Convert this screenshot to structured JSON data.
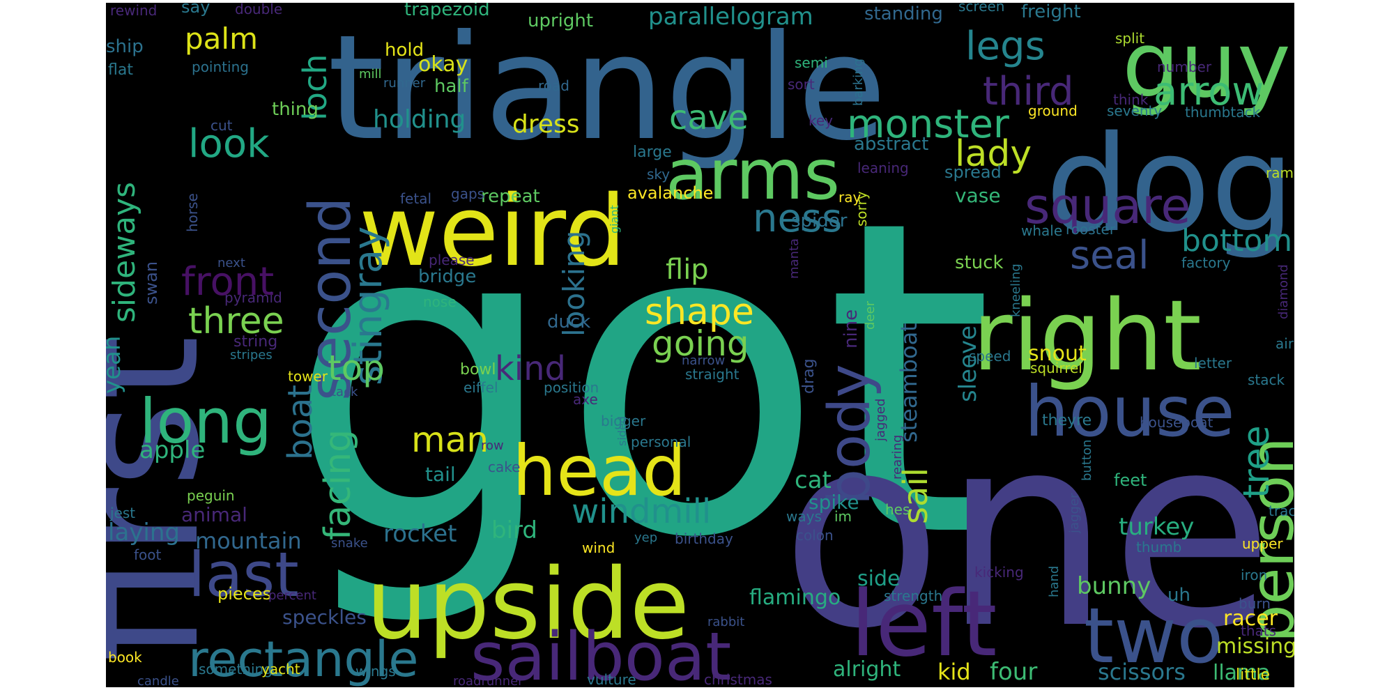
{
  "cloud": {
    "background": "#000000",
    "palette": "viridis",
    "words": [
      {
        "text": "got",
        "color": "#21a585",
        "weight": 1.0
      },
      {
        "text": "one",
        "color": "#433e85",
        "weight": 0.85
      },
      {
        "text": "first",
        "color": "#3e4989",
        "weight": 0.7
      },
      {
        "text": "triangle",
        "color": "#33638d",
        "weight": 0.65
      },
      {
        "text": "dog",
        "color": "#33638d",
        "weight": 0.55
      },
      {
        "text": "weird",
        "color": "#e2e418",
        "weight": 0.45
      },
      {
        "text": "guy",
        "color": "#5ec962",
        "weight": 0.45
      },
      {
        "text": "right",
        "color": "#7ad151",
        "weight": 0.45
      },
      {
        "text": "upside",
        "color": "#bddf26",
        "weight": 0.5
      },
      {
        "text": "left",
        "color": "#482878",
        "weight": 0.5
      },
      {
        "text": "sailboat",
        "color": "#482878",
        "weight": 0.4
      },
      {
        "text": "two",
        "color": "#3b528b",
        "weight": 0.4
      },
      {
        "text": "person",
        "color": "#6ece58",
        "weight": 0.35
      },
      {
        "text": "head",
        "color": "#e5e419",
        "weight": 0.35
      },
      {
        "text": "house",
        "color": "#3b528b",
        "weight": 0.3
      },
      {
        "text": "arms",
        "color": "#5ec962",
        "weight": 0.3
      },
      {
        "text": "body",
        "color": "#3e4989",
        "weight": 0.3
      },
      {
        "text": "second",
        "color": "#3b528b",
        "weight": 0.3
      },
      {
        "text": "long",
        "color": "#2fb47c",
        "weight": 0.3
      },
      {
        "text": "last",
        "color": "#3e4989",
        "weight": 0.3
      },
      {
        "text": "rectangle",
        "color": "#2a788e",
        "weight": 0.25
      },
      {
        "text": "monster",
        "color": "#2fb47c",
        "weight": 0.22
      },
      {
        "text": "square",
        "color": "#482878",
        "weight": 0.22
      },
      {
        "text": "legs",
        "color": "#25858e",
        "weight": 0.2
      },
      {
        "text": "arrow",
        "color": "#3dbc74",
        "weight": 0.2
      },
      {
        "text": "third",
        "color": "#482878",
        "weight": 0.18
      },
      {
        "text": "seal",
        "color": "#3b528b",
        "weight": 0.18
      },
      {
        "text": "bottom",
        "color": "#21918c",
        "weight": 0.18
      },
      {
        "text": "tree",
        "color": "#1fa088",
        "weight": 0.18
      },
      {
        "text": "lady",
        "color": "#bddf26",
        "weight": 0.18
      },
      {
        "text": "ness",
        "color": "#2a788e",
        "weight": 0.18
      },
      {
        "text": "cave",
        "color": "#3dbc74",
        "weight": 0.17
      },
      {
        "text": "look",
        "color": "#22a884",
        "weight": 0.18
      },
      {
        "text": "loch",
        "color": "#22a884",
        "weight": 0.16
      },
      {
        "text": "palm",
        "color": "#dde318",
        "weight": 0.16
      },
      {
        "text": "sideways",
        "color": "#2fb47c",
        "weight": 0.17
      },
      {
        "text": "front",
        "color": "#471164",
        "weight": 0.18
      },
      {
        "text": "three",
        "color": "#7ad151",
        "weight": 0.18
      },
      {
        "text": "stingray",
        "color": "#2a788e",
        "weight": 0.18
      },
      {
        "text": "top",
        "color": "#5ec962",
        "weight": 0.17
      },
      {
        "text": "facing",
        "color": "#35b779",
        "weight": 0.17
      },
      {
        "text": "boat",
        "color": "#2c728e",
        "weight": 0.16
      },
      {
        "text": "shape",
        "color": "#fde725",
        "weight": 0.17
      },
      {
        "text": "going",
        "color": "#7ad151",
        "weight": 0.17
      },
      {
        "text": "kind",
        "color": "#482878",
        "weight": 0.16
      },
      {
        "text": "man",
        "color": "#d8e219",
        "weight": 0.16
      },
      {
        "text": "windmill",
        "color": "#21918c",
        "weight": 0.17
      },
      {
        "text": "looking",
        "color": "#2c728e",
        "weight": 0.16
      },
      {
        "text": "flip",
        "color": "#7ad151",
        "weight": 0.14
      },
      {
        "text": "dress",
        "color": "#d8e219",
        "weight": 0.13
      },
      {
        "text": "holding",
        "color": "#21918c",
        "weight": 0.13
      },
      {
        "text": "okay",
        "color": "#d8e219",
        "weight": 0.12
      },
      {
        "text": "parallelogram",
        "color": "#21918c",
        "weight": 0.12
      },
      {
        "text": "nine",
        "color": "#482878",
        "weight": 0.11
      },
      {
        "text": "sail",
        "color": "#addc30",
        "weight": 0.14
      },
      {
        "text": "steamboat",
        "color": "#31688e",
        "weight": 0.11
      },
      {
        "text": "sleeve",
        "color": "#25858e",
        "weight": 0.12
      },
      {
        "text": "snout",
        "color": "#e5e419",
        "weight": 0.1
      },
      {
        "text": "bunny",
        "color": "#5ec962",
        "weight": 0.11
      },
      {
        "text": "turkey",
        "color": "#28ae80",
        "weight": 0.11
      },
      {
        "text": "racer",
        "color": "#fde725",
        "weight": 0.1
      },
      {
        "text": "missing",
        "color": "#bddf26",
        "weight": 0.1
      },
      {
        "text": "scissors",
        "color": "#2a788e",
        "weight": 0.11
      },
      {
        "text": "llama",
        "color": "#3dbc74",
        "weight": 0.11
      },
      {
        "text": "four",
        "color": "#3dbc74",
        "weight": 0.11
      },
      {
        "text": "kid",
        "color": "#e5e419",
        "weight": 0.1
      },
      {
        "text": "alright",
        "color": "#2fb47c",
        "weight": 0.1
      },
      {
        "text": "flamingo",
        "color": "#27ad81",
        "weight": 0.1
      },
      {
        "text": "side",
        "color": "#1fa088",
        "weight": 0.1
      },
      {
        "text": "apple",
        "color": "#2fb47c",
        "weight": 0.1
      },
      {
        "text": "yeah",
        "color": "#21918c",
        "weight": 0.1
      },
      {
        "text": "laying",
        "color": "#2c728e",
        "weight": 0.1
      },
      {
        "text": "mountain",
        "color": "#31688e",
        "weight": 0.1
      },
      {
        "text": "rocket",
        "color": "#2c728e",
        "weight": 0.1
      },
      {
        "text": "bird",
        "color": "#2fb47c",
        "weight": 0.1
      },
      {
        "text": "cat",
        "color": "#2fb47c",
        "weight": 0.1
      },
      {
        "text": "spike",
        "color": "#21918c",
        "weight": 0.09
      },
      {
        "text": "animal",
        "color": "#482878",
        "weight": 0.09
      },
      {
        "text": "speckles",
        "color": "#3b528b",
        "weight": 0.09
      },
      {
        "text": "pieces",
        "color": "#e5e419",
        "weight": 0.08
      },
      {
        "text": "tail",
        "color": "#21918c",
        "weight": 0.09
      },
      {
        "text": "avalanche",
        "color": "#fde725",
        "weight": 0.08
      },
      {
        "text": "repeat",
        "color": "#5ec962",
        "weight": 0.08
      },
      {
        "text": "vase",
        "color": "#35b779",
        "weight": 0.09
      },
      {
        "text": "spread",
        "color": "#2a788e",
        "weight": 0.08
      },
      {
        "text": "abstract",
        "color": "#2a788e",
        "weight": 0.08
      },
      {
        "text": "stuck",
        "color": "#7ad151",
        "weight": 0.08
      },
      {
        "text": "spider",
        "color": "#2c728e",
        "weight": 0.08
      },
      {
        "text": "bridge",
        "color": "#2a788e",
        "weight": 0.08
      },
      {
        "text": "duck",
        "color": "#31688e",
        "weight": 0.08
      },
      {
        "text": "swan",
        "color": "#3b528b",
        "weight": 0.08
      },
      {
        "text": "ship",
        "color": "#2c728e",
        "weight": 0.07
      },
      {
        "text": "hold",
        "color": "#e5e419",
        "weight": 0.07
      },
      {
        "text": "half",
        "color": "#5ec962",
        "weight": 0.07
      },
      {
        "text": "thing",
        "color": "#6ece58",
        "weight": 0.07
      },
      {
        "text": "trapezoid",
        "color": "#2fb47c",
        "weight": 0.07
      },
      {
        "text": "upright",
        "color": "#5ec962",
        "weight": 0.07
      },
      {
        "text": "standing",
        "color": "#31688e",
        "weight": 0.07
      },
      {
        "text": "freight",
        "color": "#2a788e",
        "weight": 0.07
      },
      {
        "text": "say",
        "color": "#2a788e",
        "weight": 0.06
      },
      {
        "text": "rewind",
        "color": "#482878",
        "weight": 0.05
      },
      {
        "text": "double",
        "color": "#482878",
        "weight": 0.05
      },
      {
        "text": "screen",
        "color": "#2a788e",
        "weight": 0.05
      },
      {
        "text": "split",
        "color": "#addc30",
        "weight": 0.05
      },
      {
        "text": "flat",
        "color": "#2a788e",
        "weight": 0.05
      },
      {
        "text": "pointing",
        "color": "#2c728e",
        "weight": 0.05
      },
      {
        "text": "mill",
        "color": "#5ec962",
        "weight": 0.05
      },
      {
        "text": "runner",
        "color": "#31688e",
        "weight": 0.05
      },
      {
        "text": "road",
        "color": "#31688e",
        "weight": 0.05
      },
      {
        "text": "semi",
        "color": "#2fb47c",
        "weight": 0.05
      },
      {
        "text": "sort",
        "color": "#482878",
        "weight": 0.05
      },
      {
        "text": "barking",
        "color": "#2c728e",
        "weight": 0.05
      },
      {
        "text": "number",
        "color": "#482878",
        "weight": 0.05
      },
      {
        "text": "think",
        "color": "#482878",
        "weight": 0.05
      },
      {
        "text": "seventy",
        "color": "#2a788e",
        "weight": 0.05
      },
      {
        "text": "thumbtack",
        "color": "#2a788e",
        "weight": 0.05
      },
      {
        "text": "ground",
        "color": "#fde725",
        "weight": 0.05
      },
      {
        "text": "key",
        "color": "#482878",
        "weight": 0.05
      },
      {
        "text": "cut",
        "color": "#3b528b",
        "weight": 0.05
      },
      {
        "text": "large",
        "color": "#2a788e",
        "weight": 0.05
      },
      {
        "text": "sky",
        "color": "#31688e",
        "weight": 0.05
      },
      {
        "text": "leaning",
        "color": "#482878",
        "weight": 0.05
      },
      {
        "text": "ramp",
        "color": "#bddf26",
        "weight": 0.05
      },
      {
        "text": "horse",
        "color": "#3b528b",
        "weight": 0.05
      },
      {
        "text": "fetal",
        "color": "#3b528b",
        "weight": 0.05
      },
      {
        "text": "gaps",
        "color": "#3b528b",
        "weight": 0.05
      },
      {
        "text": "ray",
        "color": "#fde725",
        "weight": 0.05
      },
      {
        "text": "sorry",
        "color": "#bddf26",
        "weight": 0.05
      },
      {
        "text": "giant",
        "color": "#2fb47c",
        "weight": 0.05
      },
      {
        "text": "whale",
        "color": "#2a788e",
        "weight": 0.05
      },
      {
        "text": "rooster",
        "color": "#2c728e",
        "weight": 0.05
      },
      {
        "text": "factory",
        "color": "#2a788e",
        "weight": 0.05
      },
      {
        "text": "next",
        "color": "#3b528b",
        "weight": 0.05
      },
      {
        "text": "please",
        "color": "#482878",
        "weight": 0.05
      },
      {
        "text": "manta",
        "color": "#482878",
        "weight": 0.05
      },
      {
        "text": "kneeling",
        "color": "#2a788e",
        "weight": 0.05
      },
      {
        "text": "diamond",
        "color": "#482878",
        "weight": 0.05
      },
      {
        "text": "pyramid",
        "color": "#482878",
        "weight": 0.05
      },
      {
        "text": "nose",
        "color": "#2fb47c",
        "weight": 0.05
      },
      {
        "text": "deer",
        "color": "#5ec962",
        "weight": 0.05
      },
      {
        "text": "air",
        "color": "#2a788e",
        "weight": 0.05
      },
      {
        "text": "string",
        "color": "#482878",
        "weight": 0.06
      },
      {
        "text": "stripes",
        "color": "#2a788e",
        "weight": 0.05
      },
      {
        "text": "narrow",
        "color": "#3b528b",
        "weight": 0.05
      },
      {
        "text": "straight",
        "color": "#2a788e",
        "weight": 0.05
      },
      {
        "text": "speed",
        "color": "#2a788e",
        "weight": 0.05
      },
      {
        "text": "squirrel",
        "color": "#bddf26",
        "weight": 0.05
      },
      {
        "text": "letter",
        "color": "#2a788e",
        "weight": 0.05
      },
      {
        "text": "tower",
        "color": "#e5e419",
        "weight": 0.05
      },
      {
        "text": "bowl",
        "color": "#7ad151",
        "weight": 0.05
      },
      {
        "text": "tack",
        "color": "#3b528b",
        "weight": 0.05
      },
      {
        "text": "eiffel",
        "color": "#2a788e",
        "weight": 0.05
      },
      {
        "text": "position",
        "color": "#2a788e",
        "weight": 0.05
      },
      {
        "text": "axe",
        "color": "#482878",
        "weight": 0.05
      },
      {
        "text": "drag",
        "color": "#3b528b",
        "weight": 0.05
      },
      {
        "text": "stack",
        "color": "#2a788e",
        "weight": 0.05
      },
      {
        "text": "bigger",
        "color": "#2a788e",
        "weight": 0.05
      },
      {
        "text": "jagged",
        "color": "#482878",
        "weight": 0.05
      },
      {
        "text": "theyre",
        "color": "#2a788e",
        "weight": 0.05
      },
      {
        "text": "houseboat",
        "color": "#3b528b",
        "weight": 0.05
      },
      {
        "text": "row",
        "color": "#482878",
        "weight": 0.05
      },
      {
        "text": "sided",
        "color": "#2a788e",
        "weight": 0.05
      },
      {
        "text": "personal",
        "color": "#2a788e",
        "weight": 0.05
      },
      {
        "text": "rearing",
        "color": "#482878",
        "weight": 0.05
      },
      {
        "text": "button",
        "color": "#2a788e",
        "weight": 0.05
      },
      {
        "text": "cake",
        "color": "#3b528b",
        "weight": 0.05
      },
      {
        "text": "uh",
        "color": "#2a788e",
        "weight": 0.06
      },
      {
        "text": "feet",
        "color": "#2fb47c",
        "weight": 0.06
      },
      {
        "text": "track",
        "color": "#2a788e",
        "weight": 0.05
      },
      {
        "text": "peguin",
        "color": "#7ad151",
        "weight": 0.05
      },
      {
        "text": "jest",
        "color": "#2a788e",
        "weight": 0.05
      },
      {
        "text": "ways",
        "color": "#2a788e",
        "weight": 0.05
      },
      {
        "text": "im",
        "color": "#5ec962",
        "weight": 0.05
      },
      {
        "text": "hes",
        "color": "#5ec962",
        "weight": 0.05
      },
      {
        "text": "colon",
        "color": "#3b528b",
        "weight": 0.05
      },
      {
        "text": "jagger",
        "color": "#3b528b",
        "weight": 0.05
      },
      {
        "text": "thumb",
        "color": "#2a788e",
        "weight": 0.05
      },
      {
        "text": "upper",
        "color": "#fde725",
        "weight": 0.05
      },
      {
        "text": "foot",
        "color": "#3b528b",
        "weight": 0.05
      },
      {
        "text": "snake",
        "color": "#3b528b",
        "weight": 0.05
      },
      {
        "text": "wind",
        "color": "#fde725",
        "weight": 0.05
      },
      {
        "text": "yep",
        "color": "#2a788e",
        "weight": 0.05
      },
      {
        "text": "birthday",
        "color": "#3b528b",
        "weight": 0.05
      },
      {
        "text": "hand",
        "color": "#2a788e",
        "weight": 0.05
      },
      {
        "text": "kicking",
        "color": "#482878",
        "weight": 0.05
      },
      {
        "text": "iron",
        "color": "#2a788e",
        "weight": 0.05
      },
      {
        "text": "percent",
        "color": "#482878",
        "weight": 0.05
      },
      {
        "text": "strength",
        "color": "#2a788e",
        "weight": 0.05
      },
      {
        "text": "burn",
        "color": "#3b528b",
        "weight": 0.05
      },
      {
        "text": "rabbit",
        "color": "#3b528b",
        "weight": 0.05
      },
      {
        "text": "thats",
        "color": "#482878",
        "weight": 0.05
      },
      {
        "text": "book",
        "color": "#fde725",
        "weight": 0.05
      },
      {
        "text": "something",
        "color": "#2a788e",
        "weight": 0.05
      },
      {
        "text": "yacht",
        "color": "#e5e419",
        "weight": 0.05
      },
      {
        "text": "candle",
        "color": "#3b528b",
        "weight": 0.05
      },
      {
        "text": "wings",
        "color": "#2a788e",
        "weight": 0.05
      },
      {
        "text": "roadrunner",
        "color": "#482878",
        "weight": 0.05
      },
      {
        "text": "vulture",
        "color": "#2a788e",
        "weight": 0.05
      },
      {
        "text": "christmas",
        "color": "#482878",
        "weight": 0.05
      },
      {
        "text": "little",
        "color": "#e5e419",
        "weight": 0.05
      }
    ]
  }
}
